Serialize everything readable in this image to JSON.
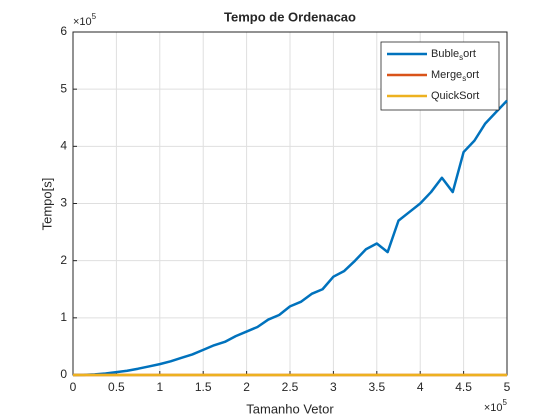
{
  "chart_data": {
    "type": "line",
    "title": "Tempo de Ordenacao",
    "xlabel": "Tamanho Vetor",
    "ylabel": "Tempo[s]",
    "x_multiplier": {
      "base": "×10",
      "exponent": "5"
    },
    "y_multiplier": {
      "base": "×10",
      "exponent": "5"
    },
    "x": [
      0,
      0.125,
      0.25,
      0.375,
      0.5,
      0.625,
      0.75,
      0.875,
      1,
      1.125,
      1.25,
      1.375,
      1.5,
      1.625,
      1.75,
      1.875,
      2,
      2.125,
      2.25,
      2.375,
      2.5,
      2.625,
      2.75,
      2.875,
      3,
      3.125,
      3.25,
      3.375,
      3.5,
      3.625,
      3.75,
      3.875,
      4,
      4.125,
      4.25,
      4.375,
      4.5,
      4.625,
      4.75,
      4.875,
      5
    ],
    "series": [
      {
        "name": "Buble_sort",
        "color": "#0072bd",
        "values": [
          0,
          0.003,
          0.012,
          0.027,
          0.05,
          0.075,
          0.11,
          0.15,
          0.19,
          0.24,
          0.3,
          0.36,
          0.44,
          0.52,
          0.58,
          0.68,
          0.76,
          0.84,
          0.97,
          1.05,
          1.2,
          1.28,
          1.42,
          1.5,
          1.72,
          1.82,
          2.0,
          2.2,
          2.3,
          2.15,
          2.7,
          2.85,
          3.0,
          3.2,
          3.45,
          3.2,
          3.9,
          4.1,
          4.4,
          4.6,
          4.8
        ]
      },
      {
        "name": "Merge_sort",
        "color": "#d95319",
        "values": [
          0,
          0,
          0,
          0,
          0,
          0,
          0,
          0,
          0,
          0,
          0,
          0,
          0,
          0,
          0,
          0,
          0,
          0,
          0,
          0,
          0,
          0,
          0,
          0,
          0,
          0,
          0,
          0,
          0,
          0,
          0,
          0,
          0,
          0,
          0,
          0,
          0,
          0,
          0,
          0,
          0
        ]
      },
      {
        "name": "QuickSort",
        "color": "#edb120",
        "values": [
          0,
          0,
          0,
          0,
          0,
          0,
          0,
          0,
          0,
          0,
          0,
          0,
          0,
          0,
          0,
          0,
          0,
          0,
          0,
          0,
          0,
          0,
          0,
          0,
          0,
          0,
          0,
          0,
          0,
          0,
          0,
          0,
          0,
          0,
          0,
          0,
          0,
          0,
          0,
          0,
          0
        ]
      }
    ],
    "xlim": [
      0,
      5
    ],
    "xticks": [
      0,
      0.5,
      1,
      1.5,
      2,
      2.5,
      3,
      3.5,
      4,
      4.5,
      5
    ],
    "ylim": [
      0,
      6
    ],
    "yticks": [
      0,
      1,
      2,
      3,
      4,
      5,
      6
    ],
    "grid": true,
    "legend": "northeast"
  }
}
